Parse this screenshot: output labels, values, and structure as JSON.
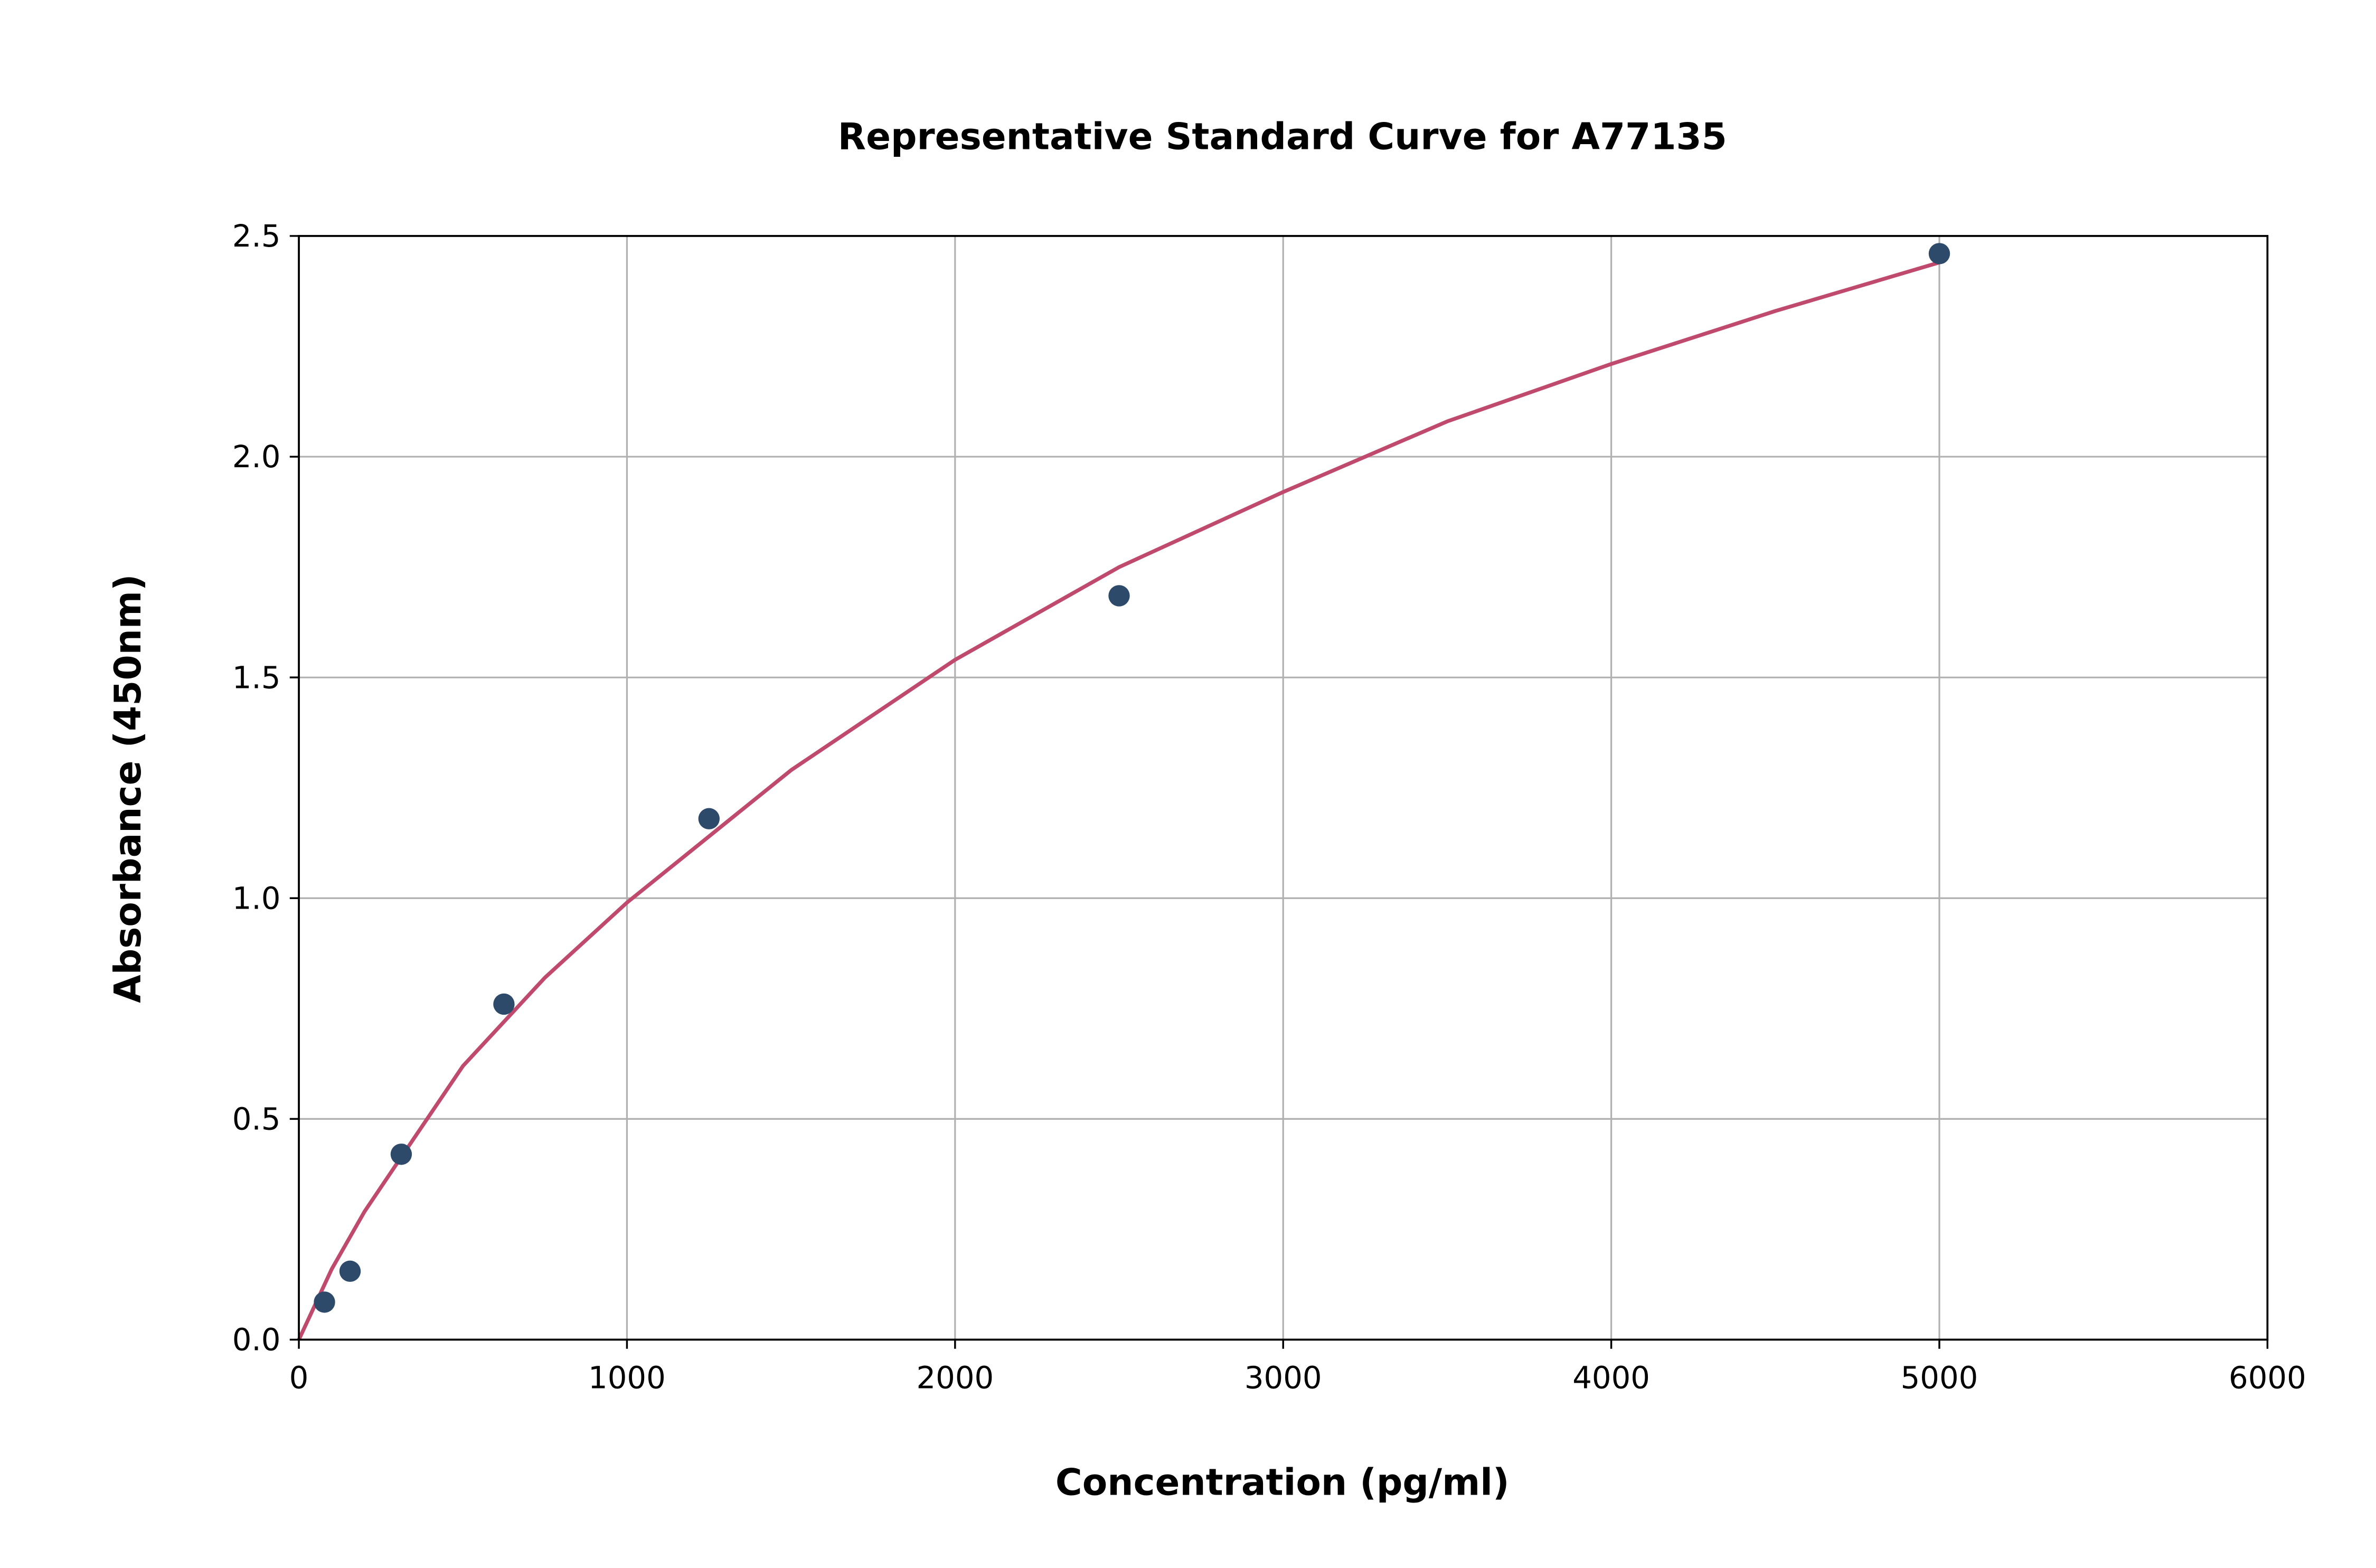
{
  "chart_data": {
    "type": "scatter",
    "title": "Representative Standard Curve for A77135",
    "xlabel": "Concentration (pg/ml)",
    "ylabel": "Absorbance (450nm)",
    "xlim": [
      0,
      6000
    ],
    "ylim": [
      0,
      2.5
    ],
    "xticks": [
      "0",
      "1000",
      "2000",
      "3000",
      "4000",
      "5000",
      "6000"
    ],
    "xtick_values": [
      0,
      1000,
      2000,
      3000,
      4000,
      5000,
      6000
    ],
    "yticks": [
      "0.0",
      "0.5",
      "1.0",
      "1.5",
      "2.0",
      "2.5"
    ],
    "ytick_values": [
      0,
      0.5,
      1.0,
      1.5,
      2.0,
      2.5
    ],
    "grid": true,
    "points": {
      "x": [
        78,
        156,
        312,
        625,
        1250,
        2500,
        5000
      ],
      "y": [
        0.085,
        0.155,
        0.42,
        0.76,
        1.18,
        1.685,
        2.46
      ],
      "color": "#2e4a6b"
    },
    "fit_curve": {
      "x": [
        0,
        50,
        100,
        200,
        300,
        500,
        750,
        1000,
        1500,
        2000,
        2500,
        3000,
        3500,
        4000,
        4500,
        5000
      ],
      "y": [
        0,
        0.08,
        0.16,
        0.29,
        0.4,
        0.62,
        0.82,
        0.99,
        1.29,
        1.54,
        1.75,
        1.92,
        2.08,
        2.21,
        2.33,
        2.44
      ],
      "color": "#c0496e"
    }
  }
}
